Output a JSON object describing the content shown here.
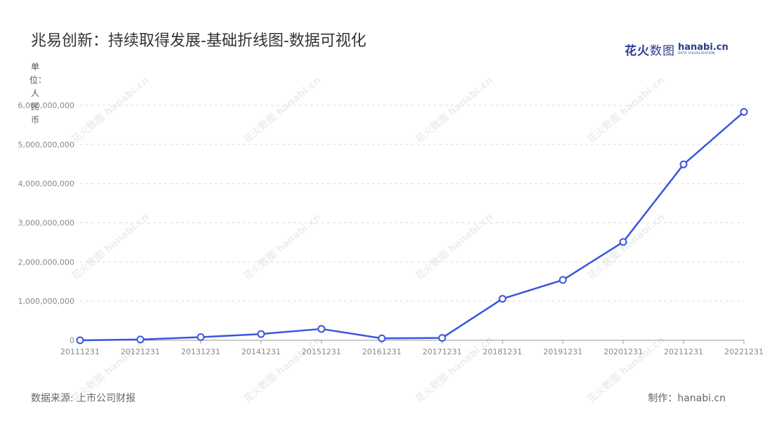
{
  "title": "兆易创新：持续取得发展-基础折线图-数据可视化",
  "logo": {
    "brand_bold": "花火",
    "brand_light": "数图",
    "domain": "hanabi.cn",
    "tagline": "DATA VISUALIZATION"
  },
  "watermark_text": "花火数图 hanabi.cn",
  "footer": {
    "source": "数据来源: 上市公司财报",
    "maker": "制作：hanabi.cn"
  },
  "colors": {
    "line": "#3a55de",
    "grid": "#dddddd",
    "axis": "#999999",
    "tick_text": "#888888"
  },
  "chart_data": {
    "type": "line",
    "title": "兆易创新：持续取得发展-基础折线图-数据可视化",
    "ylabel": "单位：人民币",
    "xlabel": "",
    "categories": [
      "20111231",
      "20121231",
      "20131231",
      "20141231",
      "20151231",
      "20161231",
      "20171231",
      "20181231",
      "20191231",
      "20201231",
      "20211231",
      "20221231"
    ],
    "series": [
      {
        "values": [
          0,
          20000000,
          80000000,
          160000000,
          290000000,
          50000000,
          60000000,
          1060000000,
          1540000000,
          2510000000,
          4490000000,
          5830000000
        ]
      }
    ],
    "yticks": [
      0,
      1000000000,
      2000000000,
      3000000000,
      4000000000,
      5000000000,
      6000000000
    ],
    "ytick_labels": [
      "0",
      "1,000,000,000",
      "2,000,000,000",
      "3,000,000,000",
      "4,000,000,000",
      "5,000,000,000",
      "6,000,000,000"
    ],
    "ylim": [
      0,
      6000000000
    ],
    "grid": "horizontal-dashed",
    "legend": "none"
  }
}
